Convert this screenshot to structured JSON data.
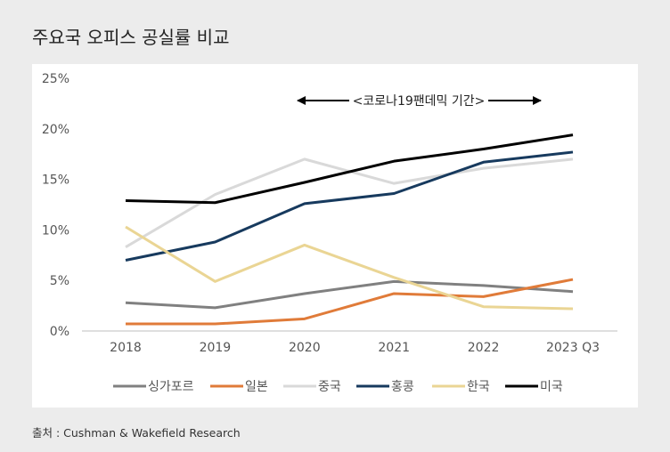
{
  "title": "주요국 오피스 공실률 비교",
  "source": "출처 : Cushman & Wakefield Research",
  "chart_data": {
    "type": "line",
    "title": "주요국 오피스 공실률 비교",
    "xlabel": "",
    "ylabel": "",
    "categories": [
      "2018",
      "2019",
      "2020",
      "2021",
      "2022",
      "2023 Q3"
    ],
    "ylim": [
      0,
      25
    ],
    "yticks": [
      "0%",
      "5%",
      "10%",
      "15%",
      "20%",
      "25%"
    ],
    "grid": false,
    "legend_position": "bottom",
    "annotation": "<코로나19팬데믹 기간>",
    "annotation_span": [
      "2020",
      "2023 Q3"
    ],
    "series": [
      {
        "name": "싱가포르",
        "color": "#808080",
        "values": [
          2.8,
          2.3,
          3.7,
          4.9,
          4.5,
          3.9
        ]
      },
      {
        "name": "일본",
        "color": "#e07b39",
        "values": [
          0.7,
          0.7,
          1.2,
          3.7,
          3.4,
          5.1
        ]
      },
      {
        "name": "중국",
        "color": "#d9d9d9",
        "values": [
          8.3,
          13.5,
          17.0,
          14.6,
          16.1,
          17.0
        ]
      },
      {
        "name": "홍콩",
        "color": "#173a5e",
        "values": [
          7.0,
          8.8,
          12.6,
          13.6,
          16.7,
          17.7
        ]
      },
      {
        "name": "한국",
        "color": "#ead594",
        "values": [
          10.3,
          4.9,
          8.5,
          5.3,
          2.4,
          2.2
        ]
      },
      {
        "name": "미국",
        "color": "#000000",
        "values": [
          12.9,
          12.7,
          14.7,
          16.8,
          18.0,
          19.4
        ]
      }
    ]
  }
}
